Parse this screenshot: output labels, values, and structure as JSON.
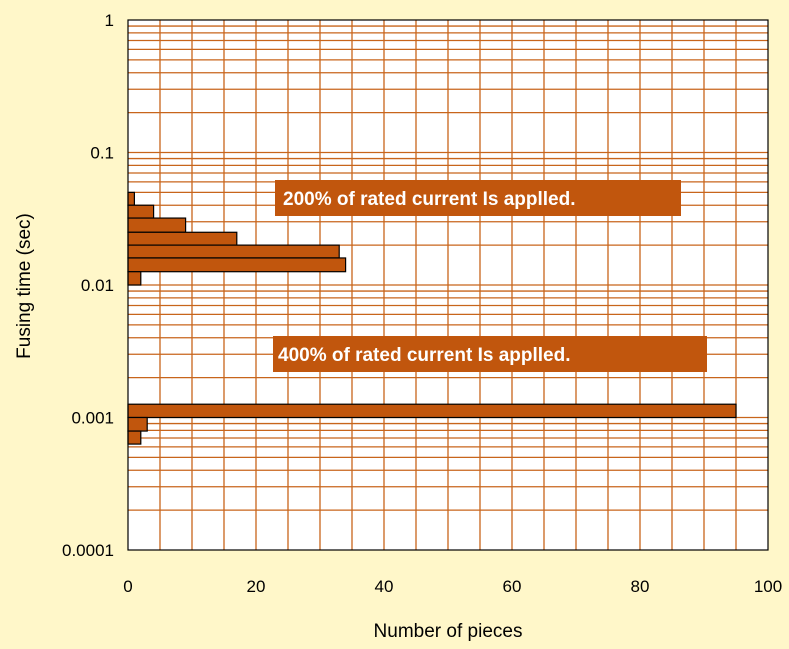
{
  "chart_data": {
    "type": "bar",
    "orientation": "horizontal",
    "title": "",
    "xlabel": "Number of pieces",
    "ylabel": "Fusing time (sec)",
    "xlim": [
      0,
      100
    ],
    "ylim": [
      0.0001,
      1
    ],
    "y_scale": "log",
    "grid": true,
    "legend": "none",
    "x_ticks": [
      "0",
      "20",
      "40",
      "60",
      "80",
      "100"
    ],
    "y_ticks": [
      "0.0001",
      "0.001",
      "0.01",
      "0.1",
      "1"
    ],
    "annotations": [
      {
        "text": "200% of rated current Is applled."
      },
      {
        "text": "400% of rated current Is applled."
      }
    ],
    "series": [
      {
        "bins": [
          {
            "y_low": 0.04,
            "y_high": 0.05,
            "value": 1
          },
          {
            "y_low": 0.032,
            "y_high": 0.04,
            "value": 4
          },
          {
            "y_low": 0.025,
            "y_high": 0.032,
            "value": 9
          },
          {
            "y_low": 0.02,
            "y_high": 0.025,
            "value": 17
          },
          {
            "y_low": 0.016,
            "y_high": 0.02,
            "value": 33
          },
          {
            "y_low": 0.0126,
            "y_high": 0.016,
            "value": 34
          },
          {
            "y_low": 0.01,
            "y_high": 0.0126,
            "value": 2
          }
        ]
      },
      {
        "bins": [
          {
            "y_low": 0.001,
            "y_high": 0.00126,
            "value": 95
          },
          {
            "y_low": 0.00079,
            "y_high": 0.001,
            "value": 3
          },
          {
            "y_low": 0.00063,
            "y_high": 0.00079,
            "value": 2
          }
        ]
      }
    ],
    "colors": {
      "background": "#fff7c9",
      "plot_area": "#ffffff",
      "grid": "#c8651b",
      "bar_fill": "#c1560d",
      "bar_stroke": "#000000",
      "annotation_fill": "#c1560d",
      "annotation_text": "#ffffff"
    }
  }
}
